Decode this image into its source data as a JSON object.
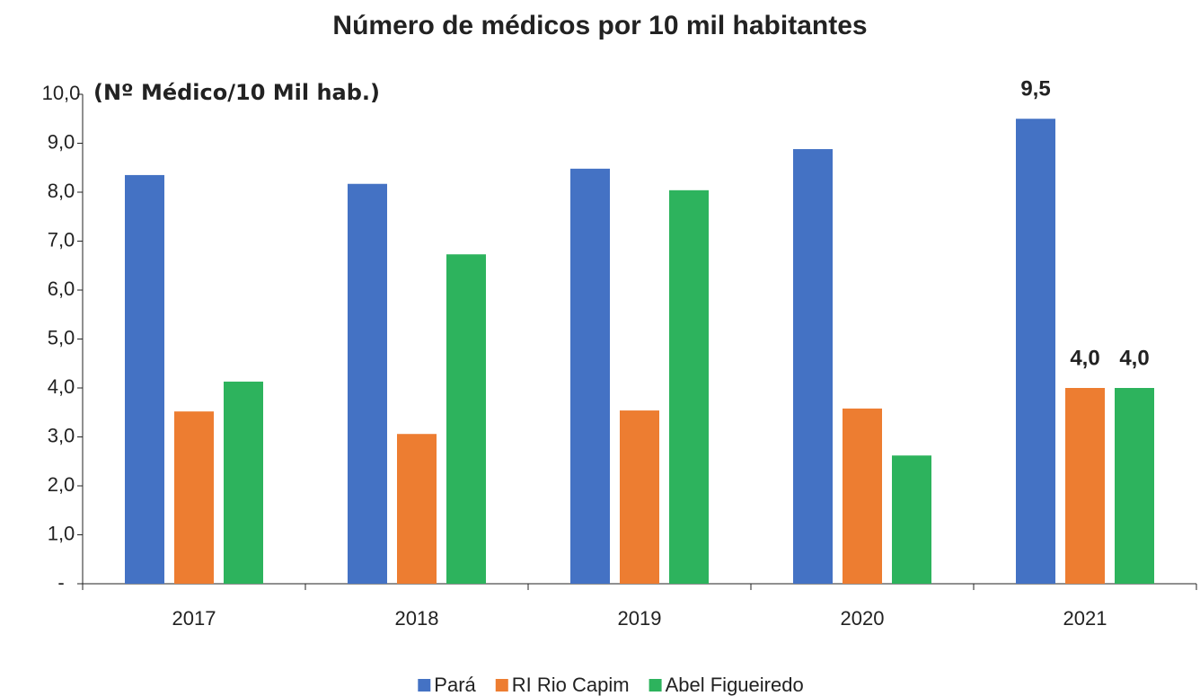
{
  "chart_data": {
    "type": "bar",
    "title": "Número de médicos por 10 mil habitantes",
    "annotation": "(Nº Médico/10 Mil hab.)",
    "categories": [
      "2017",
      "2018",
      "2019",
      "2020",
      "2021"
    ],
    "series": [
      {
        "name": "Pará",
        "color": "#4472c4",
        "values": [
          8.35,
          8.17,
          8.48,
          8.88,
          9.5
        ],
        "value_labels": [
          null,
          null,
          null,
          null,
          "9,5"
        ]
      },
      {
        "name": "RI Rio Capim",
        "color": "#ed7d31",
        "values": [
          3.52,
          3.06,
          3.54,
          3.58,
          4.0
        ],
        "value_labels": [
          null,
          null,
          null,
          null,
          "4,0"
        ]
      },
      {
        "name": "Abel Figueiredo",
        "color": "#2db35d",
        "values": [
          4.13,
          6.73,
          8.04,
          2.62,
          4.0
        ],
        "value_labels": [
          null,
          null,
          null,
          null,
          "4,0"
        ]
      }
    ],
    "ylim": [
      0,
      10
    ],
    "yticks": [
      {
        "value": 0,
        "label": "-"
      },
      {
        "value": 1,
        "label": "1,0"
      },
      {
        "value": 2,
        "label": "2,0"
      },
      {
        "value": 3,
        "label": "3,0"
      },
      {
        "value": 4,
        "label": "4,0"
      },
      {
        "value": 5,
        "label": "5,0"
      },
      {
        "value": 6,
        "label": "6,0"
      },
      {
        "value": 7,
        "label": "7,0"
      },
      {
        "value": 8,
        "label": "8,0"
      },
      {
        "value": 9,
        "label": "9,0"
      },
      {
        "value": 10,
        "label": "10,0"
      }
    ],
    "legend": "bottom"
  }
}
